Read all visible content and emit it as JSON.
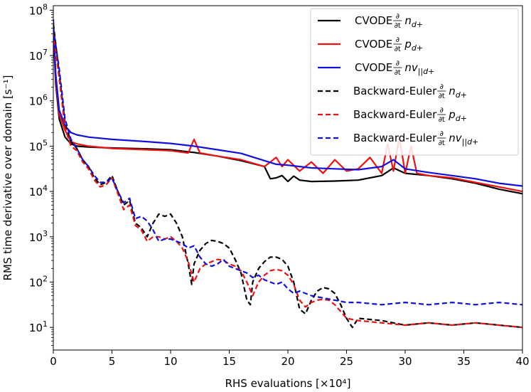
{
  "chart_data": {
    "type": "line",
    "title": "",
    "xlabel": "RHS evaluations [×10⁴]",
    "ylabel": "RMS time derivative over domain [s⁻¹]",
    "xlim": [
      0,
      40
    ],
    "ylim_log10": [
      0.5,
      8.1
    ],
    "y_scale": "log",
    "x_ticks": [
      0,
      5,
      10,
      15,
      20,
      25,
      30,
      35,
      40
    ],
    "x_tick_labels": [
      "0",
      "5",
      "10",
      "15",
      "20",
      "25",
      "30",
      "35",
      "40"
    ],
    "y_ticks_log10": [
      1,
      2,
      3,
      4,
      5,
      6,
      7,
      8
    ],
    "y_tick_labels": [
      {
        "base": "10",
        "exp": "1"
      },
      {
        "base": "10",
        "exp": "2"
      },
      {
        "base": "10",
        "exp": "3"
      },
      {
        "base": "10",
        "exp": "4"
      },
      {
        "base": "10",
        "exp": "5"
      },
      {
        "base": "10",
        "exp": "6"
      },
      {
        "base": "10",
        "exp": "7"
      },
      {
        "base": "10",
        "exp": "8"
      }
    ],
    "legend_position": "top-right",
    "series": [
      {
        "name": "CVODE ∂/∂t n_d+",
        "legend": {
          "prefix": "CVODE",
          "var": "n",
          "sub": "d+"
        },
        "color": "#000000",
        "dash": "solid",
        "x": [
          0,
          0.2,
          0.5,
          1,
          1.5,
          2,
          3,
          5,
          8,
          10,
          12,
          14,
          16,
          18,
          18.5,
          19,
          19.5,
          20,
          20.5,
          21,
          22,
          24,
          26,
          28,
          29,
          30,
          32,
          34,
          36,
          38,
          40
        ],
        "log10y": [
          7.6,
          6.4,
          5.6,
          5.2,
          5.05,
          5.0,
          4.98,
          4.96,
          4.94,
          4.92,
          4.86,
          4.78,
          4.68,
          4.55,
          4.28,
          4.3,
          4.35,
          4.22,
          4.34,
          4.25,
          4.22,
          4.23,
          4.25,
          4.35,
          4.52,
          4.4,
          4.35,
          4.28,
          4.18,
          4.05,
          3.95
        ]
      },
      {
        "name": "CVODE ∂/∂t p_d+",
        "legend": {
          "prefix": "CVODE",
          "var": "p",
          "sub": "d+"
        },
        "color": "#ee1111",
        "dash": "solid",
        "x": [
          0,
          0.2,
          0.5,
          1,
          1.5,
          2,
          3,
          5,
          8,
          10,
          11.5,
          12,
          12.5,
          14,
          16,
          18,
          19,
          19.5,
          20,
          21,
          22,
          23,
          24,
          25,
          26,
          27,
          28,
          28.5,
          29,
          29.5,
          30,
          30.5,
          31,
          32,
          34,
          36,
          38,
          40
        ],
        "log10y": [
          7.7,
          6.5,
          5.7,
          5.35,
          5.1,
          5.05,
          5.0,
          4.95,
          4.92,
          4.9,
          4.85,
          5.15,
          4.85,
          4.78,
          4.7,
          4.55,
          4.75,
          4.55,
          4.7,
          4.45,
          4.65,
          4.4,
          4.7,
          4.45,
          4.5,
          4.75,
          4.4,
          5.05,
          4.45,
          5.2,
          4.4,
          5.0,
          4.4,
          4.35,
          4.3,
          4.2,
          4.1,
          4.0
        ]
      },
      {
        "name": "CVODE ∂/∂t nv_||d+",
        "legend": {
          "prefix": "CVODE",
          "var": "nv",
          "sub": "||d+"
        },
        "color": "#1111dd",
        "dash": "solid",
        "x": [
          0,
          0.2,
          0.5,
          1,
          1.5,
          2,
          3,
          5,
          8,
          10,
          12,
          14,
          16,
          18,
          19,
          20,
          21,
          22,
          24,
          26,
          28,
          29,
          30,
          32,
          34,
          36,
          38,
          40
        ],
        "log10y": [
          7.8,
          6.6,
          5.8,
          5.45,
          5.3,
          5.25,
          5.2,
          5.15,
          5.1,
          5.06,
          5.0,
          4.92,
          4.84,
          4.68,
          4.6,
          4.58,
          4.55,
          4.52,
          4.5,
          4.48,
          4.55,
          4.7,
          4.5,
          4.42,
          4.35,
          4.28,
          4.18,
          4.12
        ]
      },
      {
        "name": "Backward-Euler ∂/∂t n_d+",
        "legend": {
          "prefix": "Backward-Euler",
          "var": "n",
          "sub": "d+"
        },
        "color": "#000000",
        "dash": "dashed",
        "x": [
          0,
          0.5,
          1,
          1.5,
          2,
          2.5,
          3,
          3.5,
          4,
          4.5,
          5,
          5.5,
          6,
          6.5,
          7,
          7.5,
          8,
          8.5,
          9,
          9.5,
          10,
          10.5,
          11,
          11.5,
          11.8,
          12,
          12.5,
          13,
          13.5,
          14,
          14.5,
          15,
          15.5,
          16,
          16.5,
          16.8,
          17,
          17.5,
          18,
          18.5,
          19,
          19.5,
          20,
          20.5,
          21,
          21.5,
          22,
          22.5,
          23,
          23.5,
          24,
          24.5,
          25,
          25.5,
          26,
          28,
          30,
          32,
          34,
          36,
          38,
          40
        ],
        "log10y": [
          7.7,
          6.6,
          5.5,
          5.1,
          4.95,
          4.7,
          4.55,
          4.3,
          4.15,
          4.2,
          4.35,
          4.0,
          3.7,
          3.8,
          3.3,
          3.2,
          3.0,
          3.3,
          3.5,
          3.45,
          3.5,
          3.3,
          3.0,
          2.4,
          1.95,
          2.4,
          2.7,
          2.85,
          2.92,
          2.9,
          2.85,
          2.75,
          2.5,
          2.2,
          1.6,
          1.5,
          2.0,
          2.3,
          2.45,
          2.55,
          2.55,
          2.5,
          2.35,
          2.0,
          1.4,
          1.3,
          1.6,
          1.8,
          1.88,
          1.85,
          1.75,
          1.5,
          1.2,
          1.0,
          1.2,
          1.15,
          1.05,
          1.1,
          1.05,
          1.1,
          1.05,
          1.0
        ]
      },
      {
        "name": "Backward-Euler ∂/∂t p_d+",
        "legend": {
          "prefix": "Backward-Euler",
          "var": "p",
          "sub": "d+"
        },
        "color": "#ee1111",
        "dash": "dashed",
        "x": [
          0,
          0.5,
          1,
          1.5,
          2,
          2.5,
          3,
          3.5,
          4,
          4.5,
          5,
          5.5,
          6,
          6.5,
          7,
          7.5,
          8,
          8.5,
          9,
          9.5,
          10,
          10.5,
          11,
          11.5,
          12,
          12.5,
          13,
          13.5,
          14,
          14.5,
          15,
          15.5,
          16,
          16.5,
          17,
          17.5,
          18,
          18.5,
          19,
          19.5,
          20,
          20.5,
          21,
          21.5,
          22,
          22.5,
          23,
          23.5,
          24,
          24.5,
          25,
          26,
          28,
          30,
          32,
          34,
          36,
          38,
          40
        ],
        "log10y": [
          7.5,
          6.5,
          5.4,
          5.0,
          4.9,
          4.65,
          4.5,
          4.25,
          4.1,
          4.15,
          4.3,
          3.95,
          3.6,
          3.7,
          3.25,
          3.15,
          2.9,
          3.0,
          3.0,
          2.95,
          3.0,
          2.9,
          2.75,
          2.45,
          2.0,
          2.3,
          2.4,
          2.45,
          2.5,
          2.48,
          2.4,
          2.35,
          2.25,
          2.0,
          1.7,
          2.0,
          2.15,
          2.25,
          2.28,
          2.25,
          2.15,
          1.95,
          1.6,
          1.45,
          1.55,
          1.6,
          1.62,
          1.6,
          1.5,
          1.35,
          1.2,
          1.15,
          1.1,
          1.05,
          1.1,
          1.05,
          1.1,
          1.05,
          1.0
        ]
      },
      {
        "name": "Backward-Euler ∂/∂t nv_||d+",
        "legend": {
          "prefix": "Backward-Euler",
          "var": "nv",
          "sub": "||d+"
        },
        "color": "#1111dd",
        "dash": "dashed",
        "x": [
          0,
          0.5,
          1,
          1.5,
          2,
          2.5,
          3,
          3.5,
          4,
          4.5,
          5,
          5.5,
          6,
          6.5,
          7,
          7.5,
          8,
          8.5,
          9,
          9.5,
          10,
          10.5,
          11,
          11.5,
          12,
          12.5,
          13,
          13.5,
          14,
          14.5,
          15,
          15.5,
          16,
          16.5,
          17,
          17.5,
          18,
          18.5,
          19,
          19.5,
          20,
          20.5,
          21,
          21.5,
          22,
          23,
          24,
          25,
          26,
          28,
          30,
          32,
          34,
          36,
          38,
          40
        ],
        "log10y": [
          7.6,
          6.7,
          5.6,
          5.15,
          4.95,
          4.7,
          4.55,
          4.35,
          4.2,
          4.2,
          4.3,
          4.0,
          3.75,
          3.85,
          3.4,
          3.45,
          3.35,
          3.15,
          2.9,
          2.95,
          2.95,
          2.9,
          2.85,
          2.75,
          2.8,
          2.55,
          2.4,
          2.35,
          2.4,
          2.5,
          2.35,
          2.3,
          2.25,
          2.2,
          2.1,
          2.15,
          2.05,
          2.0,
          1.95,
          2.0,
          1.85,
          1.75,
          1.8,
          1.75,
          1.7,
          1.65,
          1.6,
          1.55,
          1.55,
          1.5,
          1.55,
          1.5,
          1.55,
          1.5,
          1.55,
          1.5
        ]
      }
    ]
  }
}
